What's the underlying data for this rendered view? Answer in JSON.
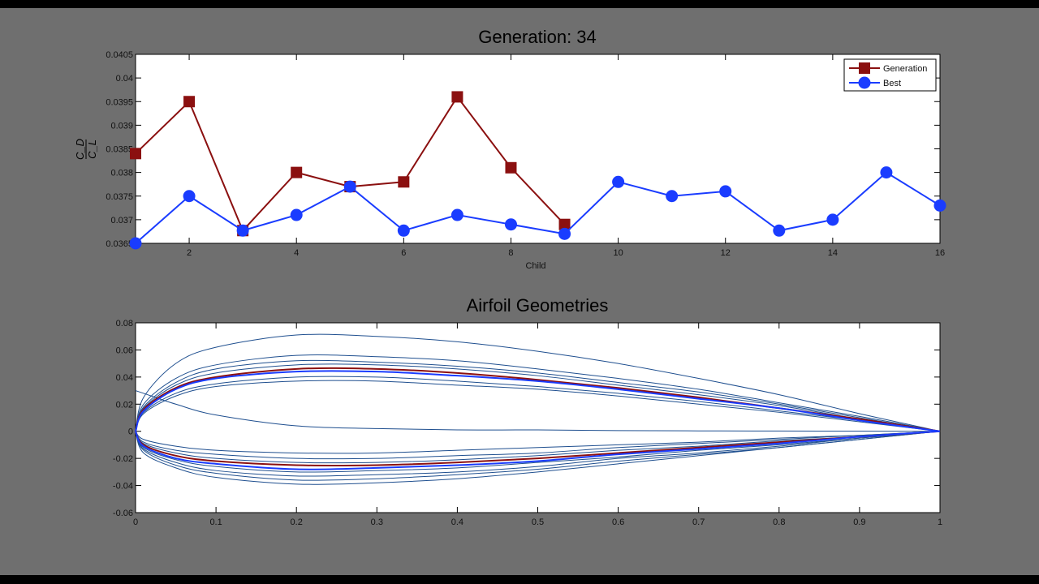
{
  "colors": {
    "background": "#6f6f6f",
    "generation": "#8b1010",
    "best": "#1a3cff",
    "airfoil_lines": "#1f4f8f"
  },
  "chart_data": [
    {
      "type": "line",
      "title": "Generation: 34",
      "xlabel": "Child",
      "ylabel_num": "C_D",
      "ylabel_den": "C_L",
      "xlim": [
        1,
        16
      ],
      "ylim": [
        0.0365,
        0.0405
      ],
      "xticks": [
        2,
        4,
        6,
        8,
        10,
        12,
        14,
        16
      ],
      "yticks": [
        "0.0365",
        "0.037",
        "0.0375",
        "0.038",
        "0.0385",
        "0.039",
        "0.0395",
        "0.04",
        "0.0405"
      ],
      "grid": false,
      "legend": "top-right",
      "series": [
        {
          "name": "Generation",
          "marker": "square",
          "color": "#8b1010",
          "x": [
            1,
            2,
            3,
            4,
            5,
            6,
            7,
            8,
            9
          ],
          "values": [
            0.0384,
            0.0395,
            0.03677,
            0.038,
            0.0377,
            0.0378,
            0.0396,
            0.0381,
            0.0369
          ]
        },
        {
          "name": "Best",
          "marker": "circle",
          "color": "#1a3cff",
          "x": [
            1,
            2,
            3,
            4,
            5,
            6,
            7,
            8,
            9,
            10,
            11,
            12,
            13,
            14,
            15,
            16
          ],
          "values": [
            0.0365,
            0.0375,
            0.03677,
            0.0371,
            0.0377,
            0.03677,
            0.0371,
            0.0369,
            0.0367,
            0.0378,
            0.0375,
            0.0376,
            0.03677,
            0.037,
            0.038,
            0.0373
          ]
        }
      ]
    },
    {
      "type": "line",
      "title": "Airfoil Geometries",
      "xlim": [
        0,
        1
      ],
      "ylim": [
        -0.06,
        0.08
      ],
      "xticks": [
        "0",
        "0.1",
        "0.2",
        "0.3",
        "0.4",
        "0.5",
        "0.6",
        "0.7",
        "0.8",
        "0.9",
        "1"
      ],
      "yticks": [
        "-0.06",
        "-0.04",
        "-0.02",
        "0",
        "0.02",
        "0.04",
        "0.06",
        "0.08"
      ],
      "grid": false,
      "x": [
        0,
        0.01,
        0.05,
        0.1,
        0.2,
        0.3,
        0.4,
        0.5,
        0.6,
        0.7,
        0.8,
        0.9,
        1
      ],
      "airfoils": [
        {
          "color": "#1f4f8f",
          "upper": [
            0,
            0.025,
            0.05,
            0.062,
            0.071,
            0.07,
            0.066,
            0.059,
            0.05,
            0.039,
            0.027,
            0.013,
            0
          ],
          "lower": [
            0,
            -0.014,
            -0.025,
            -0.031,
            -0.036,
            -0.035,
            -0.032,
            -0.028,
            -0.022,
            -0.017,
            -0.012,
            -0.006,
            0
          ]
        },
        {
          "color": "#1f4f8f",
          "upper": [
            0,
            0.02,
            0.039,
            0.049,
            0.056,
            0.055,
            0.052,
            0.046,
            0.039,
            0.031,
            0.021,
            0.011,
            0
          ],
          "lower": [
            0,
            -0.012,
            -0.021,
            -0.026,
            -0.03,
            -0.029,
            -0.027,
            -0.023,
            -0.019,
            -0.014,
            -0.01,
            -0.005,
            0
          ]
        },
        {
          "color": "#1f4f8f",
          "upper": [
            0,
            0.018,
            0.036,
            0.046,
            0.052,
            0.051,
            0.048,
            0.043,
            0.036,
            0.029,
            0.02,
            0.01,
            0
          ],
          "lower": [
            0,
            -0.016,
            -0.027,
            -0.034,
            -0.039,
            -0.038,
            -0.035,
            -0.03,
            -0.024,
            -0.018,
            -0.012,
            -0.006,
            0
          ]
        },
        {
          "color": "#1f4f8f",
          "upper": [
            0,
            0.017,
            0.034,
            0.043,
            0.049,
            0.049,
            0.046,
            0.041,
            0.034,
            0.027,
            0.019,
            0.009,
            0
          ],
          "lower": [
            0,
            -0.008,
            -0.014,
            -0.017,
            -0.02,
            -0.02,
            -0.018,
            -0.016,
            -0.012,
            -0.009,
            -0.006,
            -0.003,
            0
          ]
        },
        {
          "color": "#1f4f8f",
          "upper": [
            0,
            0.014,
            0.028,
            0.035,
            0.04,
            0.04,
            0.037,
            0.033,
            0.028,
            0.022,
            0.015,
            0.008,
            0
          ],
          "lower": [
            0,
            -0.013,
            -0.023,
            -0.029,
            -0.033,
            -0.032,
            -0.03,
            -0.026,
            -0.02,
            -0.016,
            -0.011,
            -0.005,
            0
          ]
        },
        {
          "color": "#1f4f8f",
          "upper": [
            0,
            0.013,
            0.026,
            0.033,
            0.037,
            0.037,
            0.034,
            0.031,
            0.026,
            0.02,
            0.014,
            0.007,
            0
          ],
          "lower": [
            0,
            -0.006,
            -0.011,
            -0.014,
            -0.016,
            -0.016,
            -0.014,
            -0.012,
            -0.01,
            -0.008,
            -0.005,
            -0.003,
            0
          ]
        },
        {
          "color": "#1f4f8f",
          "upper": [
            0.03,
            0.028,
            0.02,
            0.012,
            0.004,
            0.002,
            0.001,
            0.001,
            0.0005,
            0.0003,
            0.0002,
            0.0001,
            0
          ],
          "lower": [
            0,
            -0.009,
            -0.016,
            -0.02,
            -0.023,
            -0.023,
            -0.021,
            -0.018,
            -0.014,
            -0.011,
            -0.007,
            -0.004,
            0
          ]
        },
        {
          "color": "#8b1010",
          "upper": [
            0,
            0.016,
            0.032,
            0.04,
            0.046,
            0.046,
            0.043,
            0.038,
            0.032,
            0.025,
            0.017,
            0.009,
            0
          ],
          "lower": [
            0,
            -0.01,
            -0.018,
            -0.022,
            -0.025,
            -0.025,
            -0.023,
            -0.02,
            -0.016,
            -0.012,
            -0.008,
            -0.004,
            0
          ]
        },
        {
          "color": "#1a3cff",
          "upper": [
            0,
            0.015,
            0.031,
            0.039,
            0.044,
            0.044,
            0.041,
            0.037,
            0.031,
            0.024,
            0.017,
            0.008,
            0
          ],
          "lower": [
            0,
            -0.011,
            -0.02,
            -0.024,
            -0.028,
            -0.027,
            -0.025,
            -0.022,
            -0.017,
            -0.013,
            -0.009,
            -0.004,
            0
          ]
        }
      ]
    }
  ]
}
